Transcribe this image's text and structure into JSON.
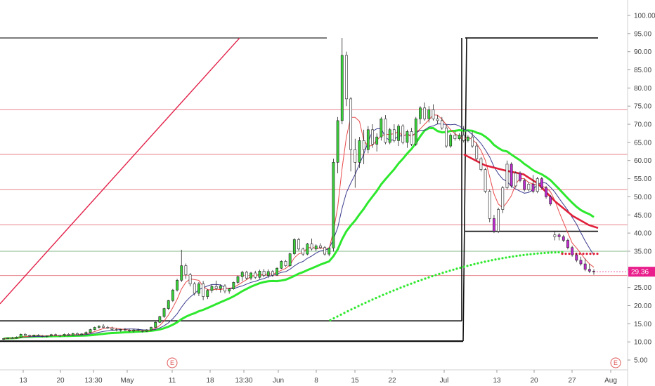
{
  "chart_data": {
    "type": "candlestick",
    "y_axis": {
      "ticks": [
        "100.00",
        "95.00",
        "90.00",
        "85.00",
        "80.00",
        "75.00",
        "70.00",
        "65.00",
        "60.00",
        "55.00",
        "50.00",
        "45.00",
        "40.00",
        "35.00",
        "30.00",
        "25.00",
        "20.00",
        "15.00",
        "10.00",
        "5.00"
      ],
      "range": [
        2.5,
        102.5
      ],
      "position": "right"
    },
    "x_axis": {
      "ticks": [
        "13",
        "20",
        "13:30",
        "May",
        "11",
        "18",
        "13:30",
        "Jun",
        "8",
        "15",
        "22",
        "Jul",
        "13",
        "20",
        "27",
        "Aug"
      ]
    },
    "last_price": "29.36",
    "last_price_color": "#e91e8c",
    "horizontal_levels_red": [
      74,
      61.7,
      52,
      42.3,
      28.3
    ],
    "horizontal_level_green": 35,
    "black_levels": [
      {
        "from": "start",
        "to": "Jul 6",
        "y": 93.8
      },
      {
        "from": "start",
        "to": "Jul 6",
        "y": 15.8
      },
      {
        "from": "Jul 6",
        "to": "end",
        "y": 40.5
      },
      {
        "from": "start",
        "to": "Jul 6",
        "y": 10.2
      }
    ],
    "event_markers": [
      "E",
      "E"
    ],
    "candles": [
      [
        10.8,
        11.0,
        10.5,
        10.9
      ],
      [
        10.9,
        11.2,
        10.7,
        11.1
      ],
      [
        11.1,
        11.4,
        10.9,
        11.0
      ],
      [
        11.0,
        11.5,
        10.9,
        11.3
      ],
      [
        11.3,
        12.3,
        11.1,
        12.1
      ],
      [
        12.1,
        12.4,
        11.7,
        11.8
      ],
      [
        11.8,
        12.0,
        11.4,
        11.6
      ],
      [
        11.6,
        12.0,
        11.4,
        11.9
      ],
      [
        11.9,
        12.1,
        11.6,
        11.7
      ],
      [
        11.7,
        11.9,
        11.3,
        11.5
      ],
      [
        11.5,
        11.8,
        11.2,
        11.7
      ],
      [
        11.7,
        12.2,
        11.5,
        12.0
      ],
      [
        12.0,
        12.3,
        11.6,
        11.8
      ],
      [
        11.8,
        12.0,
        11.4,
        11.7
      ],
      [
        11.7,
        12.3,
        11.5,
        12.1
      ],
      [
        12.1,
        12.4,
        11.8,
        11.9
      ],
      [
        11.9,
        12.5,
        11.8,
        12.3
      ],
      [
        12.3,
        12.6,
        11.9,
        12.0
      ],
      [
        12.0,
        12.4,
        11.8,
        12.2
      ],
      [
        12.2,
        12.9,
        12.0,
        12.6
      ],
      [
        12.6,
        13.6,
        12.4,
        13.4
      ],
      [
        13.4,
        14.2,
        13.2,
        14.0
      ],
      [
        14.0,
        14.6,
        13.7,
        14.3
      ],
      [
        14.3,
        14.9,
        13.8,
        14.0
      ],
      [
        14.0,
        14.4,
        13.6,
        13.8
      ],
      [
        13.8,
        14.2,
        13.1,
        13.4
      ],
      [
        13.4,
        13.8,
        12.9,
        13.2
      ],
      [
        13.2,
        13.6,
        12.8,
        13.4
      ],
      [
        13.4,
        13.8,
        13.0,
        13.2
      ],
      [
        13.2,
        13.6,
        12.7,
        13.0
      ],
      [
        13.0,
        13.5,
        12.6,
        13.3
      ],
      [
        13.3,
        13.7,
        12.9,
        13.1
      ],
      [
        13.1,
        13.4,
        12.6,
        12.9
      ],
      [
        12.9,
        13.5,
        12.7,
        13.3
      ],
      [
        13.3,
        14.2,
        13.1,
        14.0
      ],
      [
        14.0,
        15.6,
        13.8,
        15.4
      ],
      [
        15.4,
        17.2,
        15.2,
        17.0
      ],
      [
        17.0,
        19.4,
        16.6,
        19.2
      ],
      [
        19.2,
        21.6,
        18.8,
        21.4
      ],
      [
        21.4,
        24.6,
        21.0,
        24.3
      ],
      [
        24.3,
        27.4,
        23.9,
        27.0
      ],
      [
        27.0,
        35.4,
        26.5,
        31.0
      ],
      [
        31.0,
        31.6,
        27.4,
        28.5
      ],
      [
        28.5,
        29.0,
        25.3,
        26.0
      ],
      [
        26.0,
        26.5,
        22.8,
        23.4
      ],
      [
        23.4,
        26.5,
        22.6,
        26.0
      ],
      [
        26.0,
        26.8,
        21.5,
        22.5
      ],
      [
        22.5,
        24.6,
        21.8,
        24.2
      ],
      [
        24.2,
        25.8,
        23.5,
        25.3
      ],
      [
        25.3,
        26.9,
        24.2,
        24.7
      ],
      [
        24.7,
        25.9,
        23.6,
        25.4
      ],
      [
        25.4,
        25.9,
        23.4,
        24.0
      ],
      [
        24.0,
        24.9,
        23.3,
        24.6
      ],
      [
        24.6,
        26.6,
        24.4,
        26.4
      ],
      [
        26.4,
        28.3,
        26.0,
        28.0
      ],
      [
        28.0,
        29.6,
        26.8,
        29.2
      ],
      [
        29.2,
        29.6,
        27.1,
        27.6
      ],
      [
        27.6,
        29.3,
        27.0,
        29.0
      ],
      [
        29.0,
        29.6,
        27.4,
        27.8
      ],
      [
        27.8,
        29.9,
        27.4,
        29.5
      ],
      [
        29.5,
        30.1,
        27.8,
        28.3
      ],
      [
        28.3,
        30.0,
        27.6,
        29.4
      ],
      [
        29.4,
        29.8,
        27.9,
        28.4
      ],
      [
        28.4,
        30.6,
        28.2,
        30.3
      ],
      [
        30.3,
        32.5,
        30.1,
        32.2
      ],
      [
        32.2,
        32.6,
        30.7,
        31.0
      ],
      [
        31.0,
        34.6,
        30.6,
        34.3
      ],
      [
        34.3,
        38.6,
        33.9,
        38.2
      ],
      [
        38.2,
        38.7,
        35.1,
        35.6
      ],
      [
        35.6,
        36.0,
        33.7,
        34.2
      ],
      [
        34.2,
        37.3,
        33.9,
        37.0
      ],
      [
        37.0,
        38.5,
        35.2,
        35.6
      ],
      [
        35.6,
        36.9,
        35.0,
        36.5
      ],
      [
        36.5,
        37.2,
        35.6,
        36.0
      ],
      [
        36.0,
        36.4,
        33.8,
        34.2
      ],
      [
        34.2,
        36.2,
        33.6,
        35.9
      ],
      [
        35.9,
        60.5,
        34.9,
        59.5
      ],
      [
        59.5,
        72.0,
        56.5,
        71.0
      ],
      [
        71.0,
        93.8,
        70.0,
        89.0
      ],
      [
        89.0,
        90.0,
        75.0,
        77.0
      ],
      [
        77.0,
        77.5,
        57.0,
        63.0
      ],
      [
        63.0,
        66.0,
        52.5,
        59.5
      ],
      [
        59.5,
        66.5,
        58.0,
        65.5
      ],
      [
        65.5,
        68.5,
        59.0,
        63.0
      ],
      [
        63.0,
        69.5,
        62.0,
        68.5
      ],
      [
        68.5,
        70.0,
        63.5,
        64.5
      ],
      [
        64.5,
        67.5,
        62.5,
        66.5
      ],
      [
        66.5,
        72.0,
        65.5,
        71.5
      ],
      [
        71.5,
        72.5,
        64.5,
        65.0
      ],
      [
        65.0,
        69.0,
        64.5,
        68.5
      ],
      [
        68.5,
        70.0,
        65.0,
        65.5
      ],
      [
        65.5,
        70.0,
        64.0,
        69.5
      ],
      [
        69.5,
        70.0,
        64.5,
        65.0
      ],
      [
        65.0,
        68.5,
        63.5,
        68.0
      ],
      [
        68.0,
        69.0,
        64.0,
        64.5
      ],
      [
        64.5,
        72.0,
        64.0,
        71.5
      ],
      [
        71.5,
        75.0,
        70.0,
        74.5
      ],
      [
        74.5,
        76.0,
        71.0,
        71.5
      ],
      [
        71.5,
        75.0,
        70.5,
        74.0
      ],
      [
        74.0,
        75.5,
        71.0,
        71.5
      ],
      [
        71.5,
        72.5,
        70.0,
        71.0
      ],
      [
        71.0,
        72.0,
        68.5,
        69.0
      ],
      [
        69.0,
        70.0,
        63.5,
        64.0
      ],
      [
        64.0,
        67.5,
        63.5,
        67.0
      ],
      [
        67.0,
        68.0,
        65.5,
        66.0
      ],
      [
        66.0,
        67.5,
        65.5,
        67.0
      ],
      [
        67.0,
        69.5,
        65.0,
        65.5
      ],
      [
        65.5,
        67.0,
        65.0,
        66.5
      ],
      [
        66.5,
        68.0,
        63.5,
        64.0
      ],
      [
        64.0,
        65.0,
        60.0,
        60.5
      ],
      [
        60.5,
        61.0,
        57.0,
        57.5
      ],
      [
        57.5,
        58.0,
        51.0,
        51.5
      ],
      [
        51.5,
        52.0,
        43.0,
        44.0
      ],
      [
        44.0,
        45.0,
        40.0,
        40.5
      ],
      [
        40.5,
        47.0,
        40.0,
        46.5
      ],
      [
        46.5,
        53.0,
        45.5,
        52.5
      ],
      [
        52.5,
        60.0,
        52.0,
        59.0
      ],
      [
        59.0,
        59.5,
        52.5,
        53.0
      ],
      [
        53.0,
        57.0,
        52.5,
        56.5
      ],
      [
        56.5,
        57.0,
        54.0,
        54.5
      ],
      [
        54.5,
        55.0,
        51.5,
        52.0
      ],
      [
        52.0,
        54.0,
        51.5,
        53.5
      ],
      [
        53.5,
        56.0,
        51.0,
        51.5
      ],
      [
        51.5,
        55.5,
        51.0,
        55.0
      ],
      [
        55.0,
        55.5,
        52.0,
        52.5
      ],
      [
        52.5,
        53.0,
        49.5,
        50.0
      ],
      [
        50.0,
        50.5,
        47.5,
        48.0
      ],
      [
        39.0,
        40.5,
        38.0,
        39.5
      ],
      [
        39.5,
        40.0,
        38.0,
        39.0
      ],
      [
        39.0,
        39.5,
        37.5,
        38.0
      ],
      [
        38.0,
        38.5,
        35.5,
        36.0
      ],
      [
        36.0,
        36.5,
        33.5,
        34.0
      ],
      [
        34.0,
        34.5,
        32.0,
        32.5
      ],
      [
        32.5,
        33.5,
        31.0,
        31.5
      ],
      [
        31.5,
        33.0,
        29.5,
        30.0
      ],
      [
        30.0,
        31.5,
        29.0,
        29.5
      ],
      [
        29.5,
        30.0,
        28.5,
        29.36
      ]
    ]
  }
}
